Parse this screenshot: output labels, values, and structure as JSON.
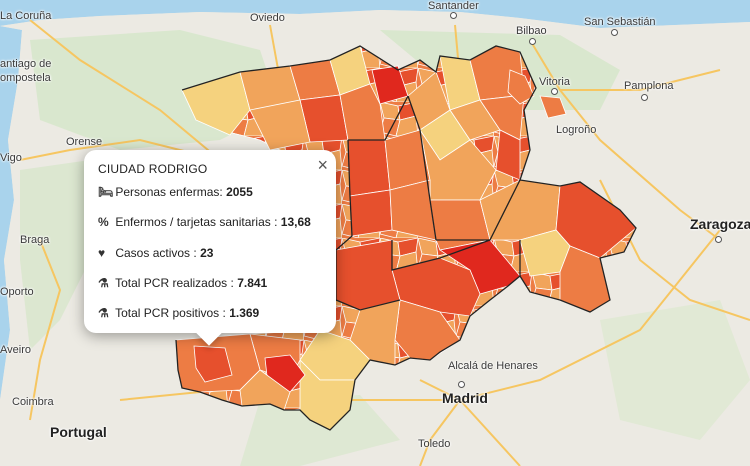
{
  "map": {
    "places": [
      {
        "id": "la-coruna",
        "label": "La Coruña"
      },
      {
        "id": "oviedo",
        "label": "Oviedo"
      },
      {
        "id": "santander",
        "label": "Santander"
      },
      {
        "id": "san-sebastian",
        "label": "San Sebastián"
      },
      {
        "id": "bilbao",
        "label": "Bilbao"
      },
      {
        "id": "santiago",
        "label": "antiago de"
      },
      {
        "id": "compostela",
        "label": "ompostela"
      },
      {
        "id": "vitoria",
        "label": "Vitoria"
      },
      {
        "id": "pamplona",
        "label": "Pamplona"
      },
      {
        "id": "logrono",
        "label": "Logroño"
      },
      {
        "id": "orense",
        "label": "Orense"
      },
      {
        "id": "vigo",
        "label": "Vigo"
      },
      {
        "id": "zaragoza",
        "label": "Zaragoza"
      },
      {
        "id": "braga",
        "label": "Braga"
      },
      {
        "id": "oporto",
        "label": "Oporto"
      },
      {
        "id": "aveiro",
        "label": "Aveiro"
      },
      {
        "id": "coimbra",
        "label": "Coimbra"
      },
      {
        "id": "portugal",
        "label": "Portugal"
      },
      {
        "id": "alcala1",
        "label": "Alcalá de Henares"
      },
      {
        "id": "madrid",
        "label": "Madrid"
      },
      {
        "id": "toledo",
        "label": "Toledo"
      }
    ],
    "colors": {
      "land": "#eceae3",
      "green": "#d5e6c8",
      "sea": "#a9d3ec",
      "road": "#f6c661",
      "pale": "#f5d27e",
      "light": "#f1a45b",
      "mid": "#ed7c44",
      "dark": "#e6502d",
      "darkest": "#e0281e"
    }
  },
  "popup": {
    "title": "CIUDAD RODRIGO",
    "close_label": "×",
    "rows": [
      {
        "icon": "bed-icon",
        "glyph": "🛏",
        "label": "Personas enfermas:",
        "value": "2055"
      },
      {
        "icon": "percent-icon",
        "glyph": "%",
        "label": "Enfermos / tarjetas sanitarias :",
        "value": "13,68"
      },
      {
        "icon": "heartbeat-icon",
        "glyph": "♥",
        "label": "Casos activos :",
        "value": "23"
      },
      {
        "icon": "flask-icon",
        "glyph": "⚗",
        "label": "Total PCR realizados :",
        "value": "7.841"
      },
      {
        "icon": "flask-icon",
        "glyph": "⚗",
        "label": "Total PCR positivos :",
        "value": "1.369"
      }
    ]
  }
}
